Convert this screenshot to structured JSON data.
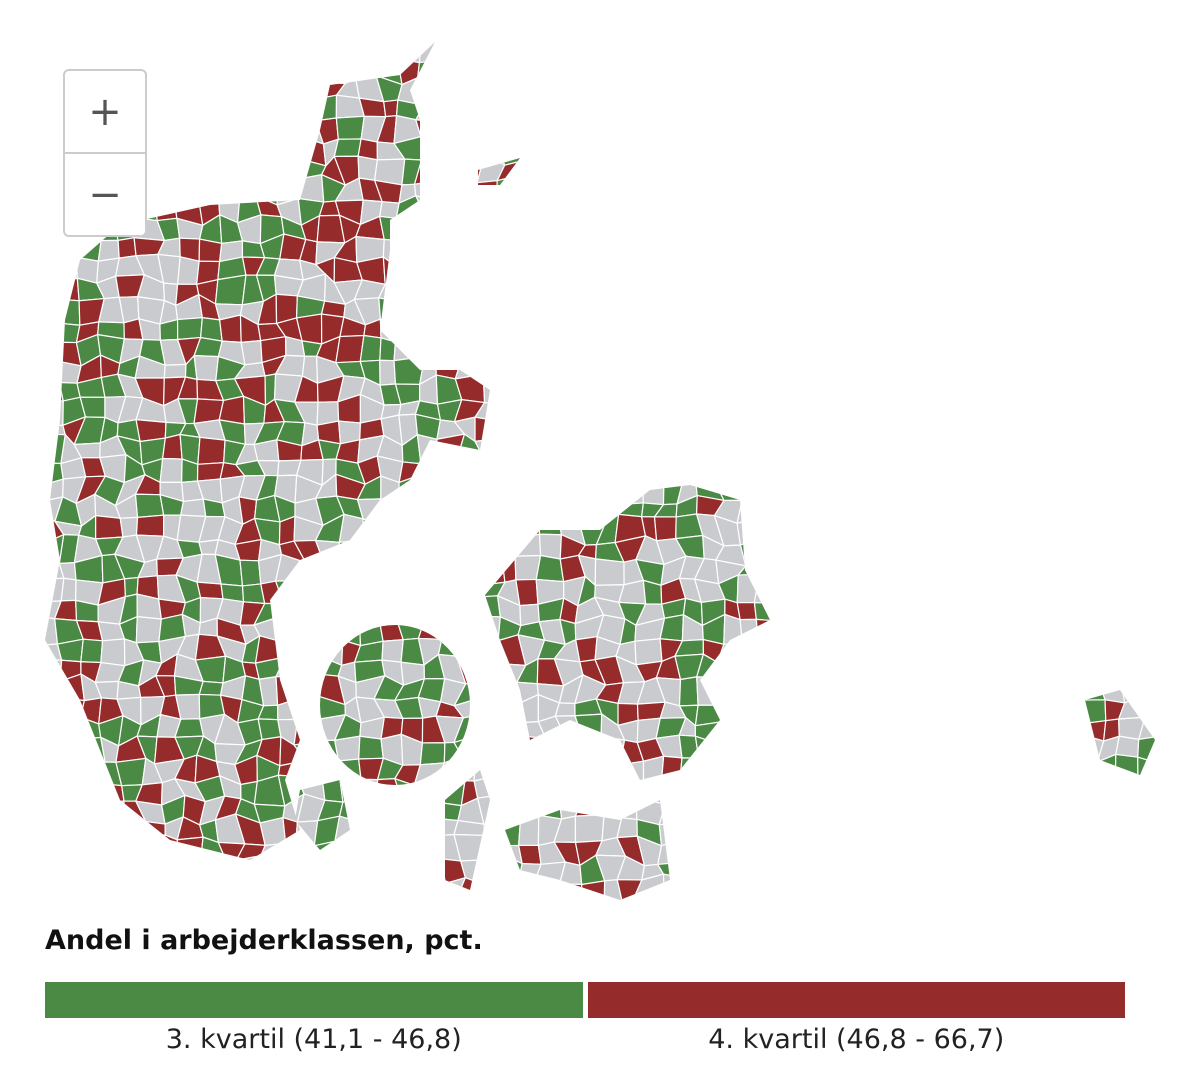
{
  "zoom_controls": {
    "zoom_in": "+",
    "zoom_out": "−"
  },
  "legend": {
    "title": "Andel i arbejderklassen, pct.",
    "items": [
      {
        "label": "3. kvartil (41,1 - 46,8)",
        "color": "#4a8a44"
      },
      {
        "label": "4. kvartil (46,8 - 66,7)",
        "color": "#962b2b"
      }
    ]
  }
}
